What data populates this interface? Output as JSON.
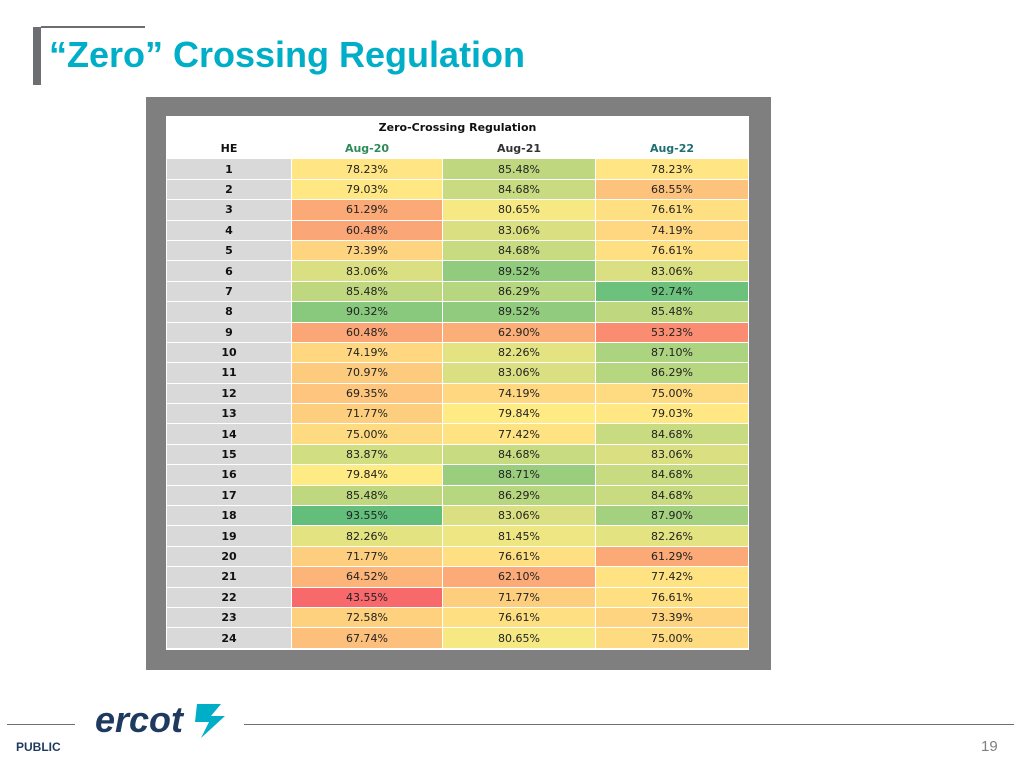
{
  "slide": {
    "title": "“Zero” Crossing Regulation",
    "footer_label": "PUBLIC",
    "page_number": "19",
    "logo_text": "ercot"
  },
  "table": {
    "title": "Zero-Crossing Regulation",
    "headers": [
      "HE",
      "Aug-20",
      "Aug-21",
      "Aug-22"
    ],
    "rows": [
      {
        "he": "1",
        "v": [
          "78.23%",
          "85.48%",
          "78.23%"
        ]
      },
      {
        "he": "2",
        "v": [
          "79.03%",
          "84.68%",
          "68.55%"
        ]
      },
      {
        "he": "3",
        "v": [
          "61.29%",
          "80.65%",
          "76.61%"
        ]
      },
      {
        "he": "4",
        "v": [
          "60.48%",
          "83.06%",
          "74.19%"
        ]
      },
      {
        "he": "5",
        "v": [
          "73.39%",
          "84.68%",
          "76.61%"
        ]
      },
      {
        "he": "6",
        "v": [
          "83.06%",
          "89.52%",
          "83.06%"
        ]
      },
      {
        "he": "7",
        "v": [
          "85.48%",
          "86.29%",
          "92.74%"
        ]
      },
      {
        "he": "8",
        "v": [
          "90.32%",
          "89.52%",
          "85.48%"
        ]
      },
      {
        "he": "9",
        "v": [
          "60.48%",
          "62.90%",
          "53.23%"
        ]
      },
      {
        "he": "10",
        "v": [
          "74.19%",
          "82.26%",
          "87.10%"
        ]
      },
      {
        "he": "11",
        "v": [
          "70.97%",
          "83.06%",
          "86.29%"
        ]
      },
      {
        "he": "12",
        "v": [
          "69.35%",
          "74.19%",
          "75.00%"
        ]
      },
      {
        "he": "13",
        "v": [
          "71.77%",
          "79.84%",
          "79.03%"
        ]
      },
      {
        "he": "14",
        "v": [
          "75.00%",
          "77.42%",
          "84.68%"
        ]
      },
      {
        "he": "15",
        "v": [
          "83.87%",
          "84.68%",
          "83.06%"
        ]
      },
      {
        "he": "16",
        "v": [
          "79.84%",
          "88.71%",
          "84.68%"
        ]
      },
      {
        "he": "17",
        "v": [
          "85.48%",
          "86.29%",
          "84.68%"
        ]
      },
      {
        "he": "18",
        "v": [
          "93.55%",
          "83.06%",
          "87.90%"
        ]
      },
      {
        "he": "19",
        "v": [
          "82.26%",
          "81.45%",
          "82.26%"
        ]
      },
      {
        "he": "20",
        "v": [
          "71.77%",
          "76.61%",
          "61.29%"
        ]
      },
      {
        "he": "21",
        "v": [
          "64.52%",
          "62.10%",
          "77.42%"
        ]
      },
      {
        "he": "22",
        "v": [
          "43.55%",
          "71.77%",
          "76.61%"
        ]
      },
      {
        "he": "23",
        "v": [
          "72.58%",
          "76.61%",
          "73.39%"
        ]
      },
      {
        "he": "24",
        "v": [
          "67.74%",
          "80.65%",
          "75.00%"
        ]
      }
    ]
  },
  "colors": {
    "title": "#00aec7",
    "frame": "#7f7f7f",
    "heatmap_low": "#f8696b",
    "heatmap_mid": "#ffeb84",
    "heatmap_high": "#63be7b"
  }
}
